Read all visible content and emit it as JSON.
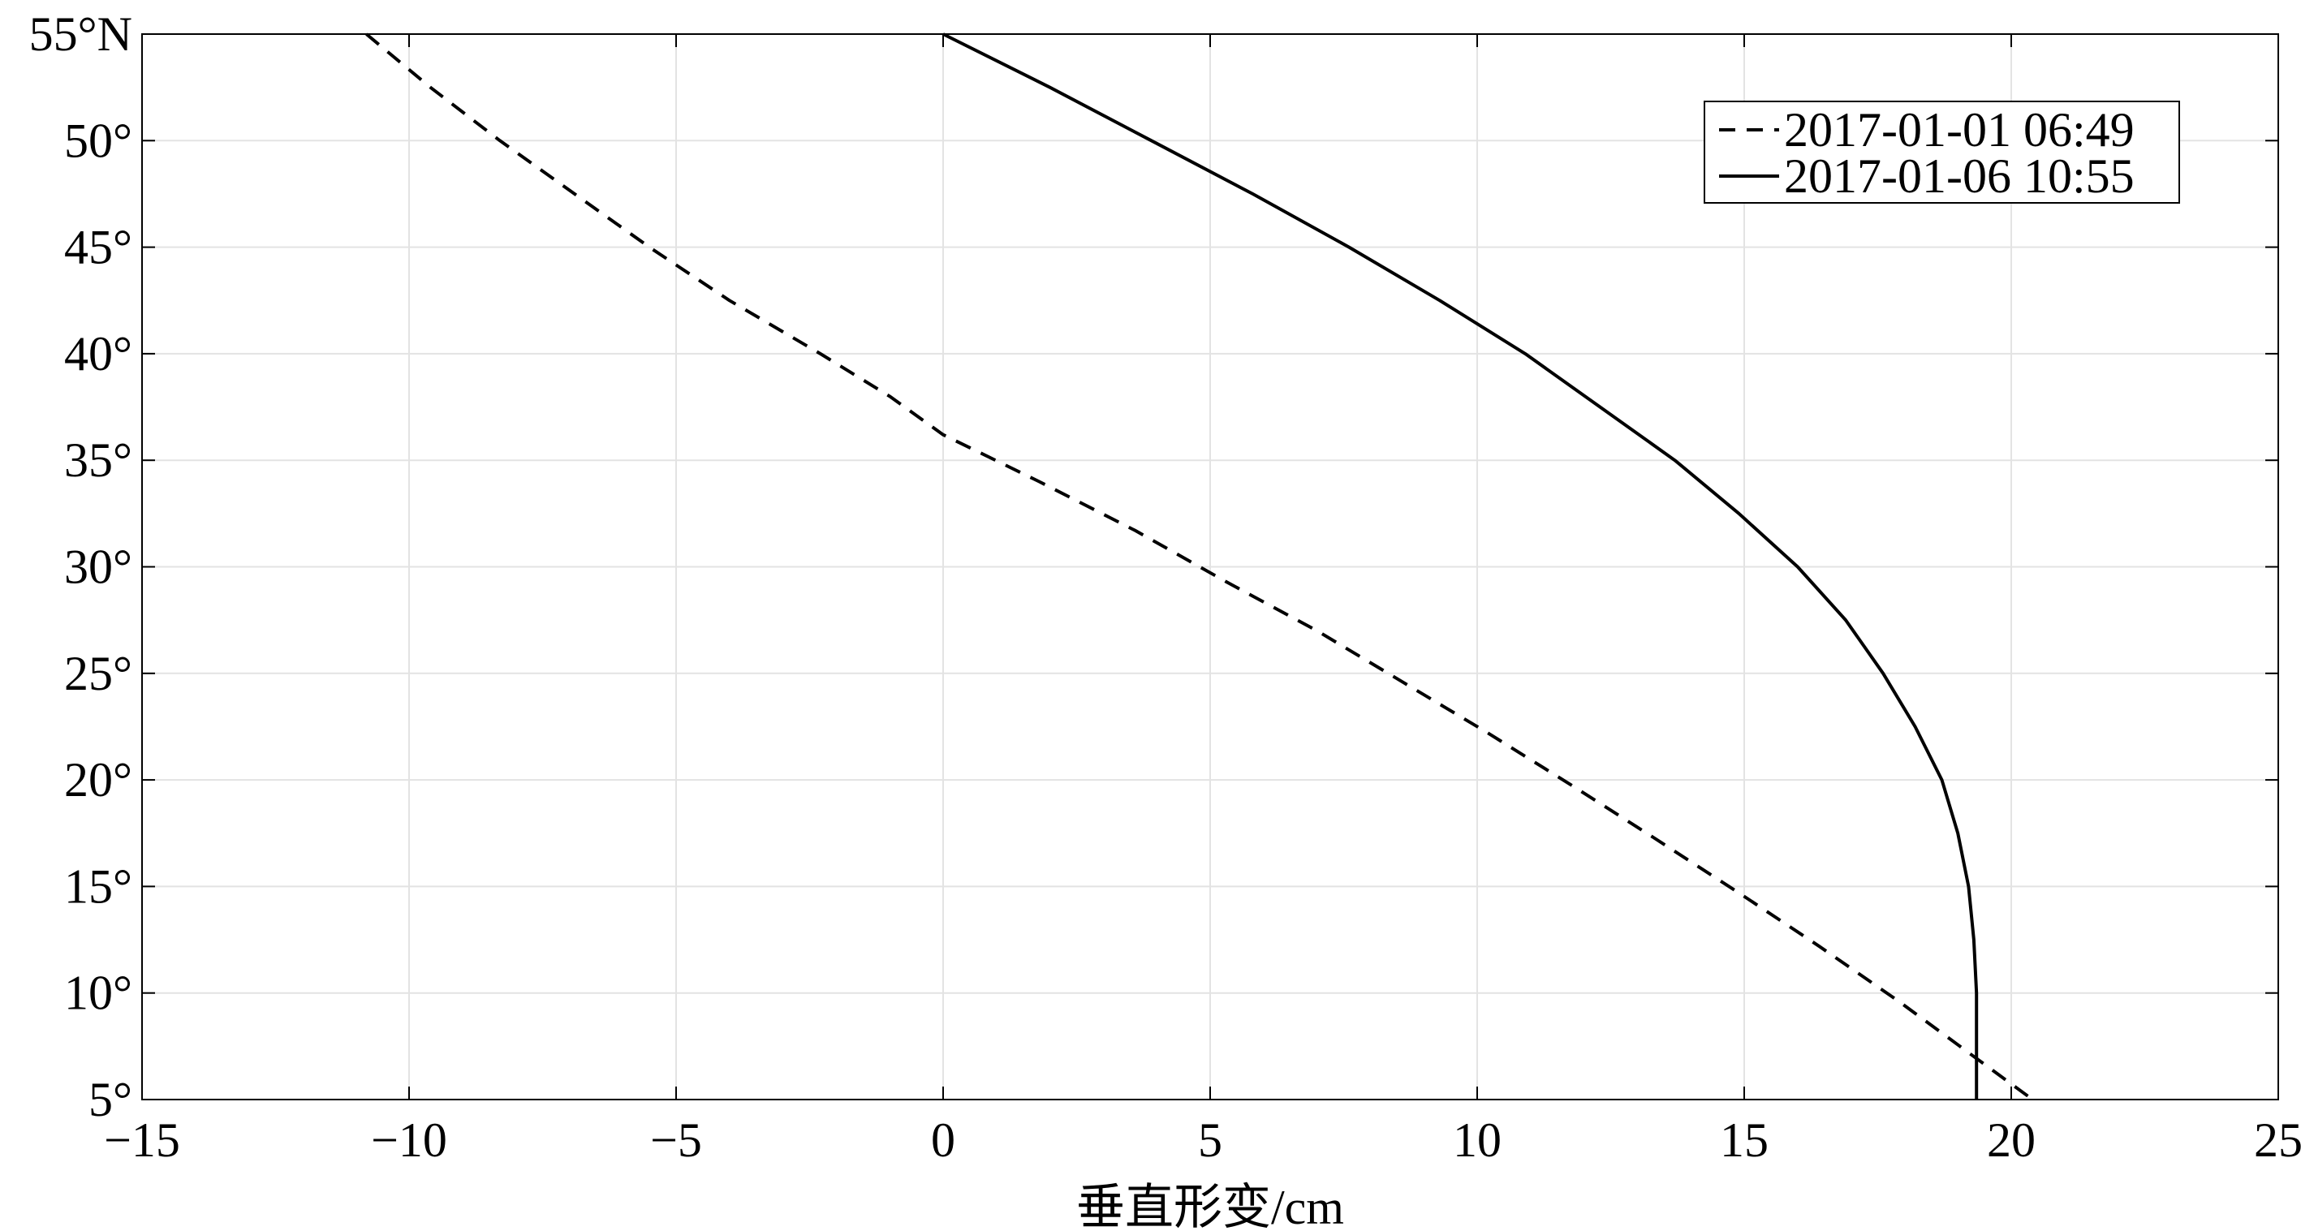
{
  "chart_data": {
    "type": "line",
    "title": "",
    "xlabel": "垂直形变/cm",
    "ylabel": "",
    "xlim": [
      -15,
      25
    ],
    "ylim": [
      5,
      55
    ],
    "x_ticks": [
      -15,
      -10,
      -5,
      0,
      5,
      10,
      15,
      20,
      25
    ],
    "x_tick_labels": [
      "−15",
      "−10",
      "−5",
      "0",
      "5",
      "10",
      "15",
      "20",
      "25"
    ],
    "y_ticks": [
      5,
      10,
      15,
      20,
      25,
      30,
      35,
      40,
      45,
      50,
      55
    ],
    "y_tick_labels": [
      "5°",
      "10°",
      "15°",
      "20°",
      "25°",
      "30°",
      "35°",
      "40°",
      "45°",
      "50°",
      "55°N"
    ],
    "grid": true,
    "legend_position": "top-right",
    "series": [
      {
        "name": "2017-01-01 06:49",
        "style": "dashed",
        "color": "#000000",
        "points": [
          [
            -10.8,
            55
          ],
          [
            -9.6,
            52.5
          ],
          [
            -8.3,
            50
          ],
          [
            -6.9,
            47.5
          ],
          [
            -5.5,
            45
          ],
          [
            -4.0,
            42.5
          ],
          [
            -2.3,
            40
          ],
          [
            -1.0,
            38
          ],
          [
            0,
            36.2
          ],
          [
            1.8,
            34
          ],
          [
            3.6,
            31.7
          ],
          [
            5.3,
            29.3
          ],
          [
            7.0,
            27
          ],
          [
            8.6,
            24.6
          ],
          [
            10.2,
            22.2
          ],
          [
            11.8,
            19.7
          ],
          [
            13.3,
            17.3
          ],
          [
            14.9,
            14.7
          ],
          [
            16.4,
            12.2
          ],
          [
            17.9,
            9.6
          ],
          [
            19.2,
            7.2
          ],
          [
            20.4,
            5
          ]
        ]
      },
      {
        "name": "2017-01-06 10:55",
        "style": "solid",
        "color": "#000000",
        "points": [
          [
            0,
            55
          ],
          [
            2.0,
            52.5
          ],
          [
            3.9,
            50
          ],
          [
            5.8,
            47.5
          ],
          [
            7.6,
            45
          ],
          [
            9.3,
            42.5
          ],
          [
            10.9,
            40
          ],
          [
            12.3,
            37.5
          ],
          [
            13.7,
            35
          ],
          [
            14.9,
            32.5
          ],
          [
            16.0,
            30
          ],
          [
            16.9,
            27.5
          ],
          [
            17.6,
            25
          ],
          [
            18.2,
            22.5
          ],
          [
            18.7,
            20
          ],
          [
            19.0,
            17.5
          ],
          [
            19.2,
            15
          ],
          [
            19.3,
            12.5
          ],
          [
            19.35,
            10
          ],
          [
            19.35,
            7.5
          ],
          [
            19.35,
            5
          ]
        ]
      }
    ]
  }
}
